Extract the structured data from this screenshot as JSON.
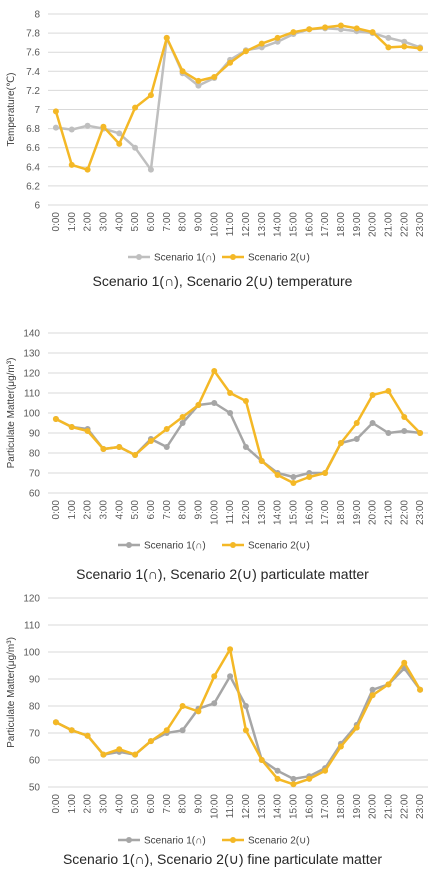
{
  "colors": {
    "series1": "#bfbfbf",
    "series2": "#f4b826",
    "grid": "#d9d9d9",
    "series1_dark": "#a6a6a6"
  },
  "chart_data": [
    {
      "type": "line",
      "title": "Scenario 1(∩), Scenario 2(∪) temperature",
      "xlabel": "",
      "ylabel": "Temperature(℃)",
      "ylim": [
        6,
        8
      ],
      "ystep": 0.2,
      "grid": true,
      "legend": "bottom",
      "categories": [
        "0:00",
        "1:00",
        "2:00",
        "3:00",
        "4:00",
        "5:00",
        "6:00",
        "7:00",
        "8:00",
        "9:00",
        "10:00",
        "11:00",
        "12:00",
        "13:00",
        "14:00",
        "15:00",
        "16:00",
        "17:00",
        "18:00",
        "19:00",
        "20:00",
        "21:00",
        "22:00",
        "23:00"
      ],
      "series": [
        {
          "name": "Scenario 1(∩)",
          "values": [
            6.81,
            6.79,
            6.83,
            6.8,
            6.75,
            6.6,
            6.37,
            7.75,
            7.38,
            7.25,
            7.33,
            7.52,
            7.62,
            7.65,
            7.71,
            7.79,
            7.84,
            7.85,
            7.84,
            7.82,
            7.8,
            7.75,
            7.71,
            7.65
          ]
        },
        {
          "name": "Scenario 2(∪)",
          "values": [
            6.98,
            6.42,
            6.37,
            6.82,
            6.64,
            7.02,
            7.15,
            7.75,
            7.4,
            7.3,
            7.34,
            7.49,
            7.61,
            7.69,
            7.75,
            7.81,
            7.84,
            7.86,
            7.88,
            7.85,
            7.81,
            7.65,
            7.66,
            7.64
          ]
        }
      ]
    },
    {
      "type": "line",
      "title": "Scenario 1(∩), Scenario 2(∪) particulate matter",
      "xlabel": "",
      "ylabel": "Particulate Matter(μg/m³)",
      "ylim": [
        60,
        140
      ],
      "ystep": 10,
      "grid": true,
      "legend": "bottom",
      "categories": [
        "0:00",
        "1:00",
        "2:00",
        "3:00",
        "4:00",
        "5:00",
        "6:00",
        "7:00",
        "8:00",
        "9:00",
        "10:00",
        "11:00",
        "12:00",
        "13:00",
        "14:00",
        "15:00",
        "16:00",
        "17:00",
        "18:00",
        "19:00",
        "20:00",
        "21:00",
        "22:00",
        "23:00"
      ],
      "series": [
        {
          "name": "Scenario 1(∩)",
          "values": [
            97,
            93,
            92,
            82,
            83,
            79,
            87,
            83,
            95,
            104,
            105,
            100,
            83,
            76,
            70,
            68,
            70,
            70,
            85,
            87,
            95,
            90,
            91,
            90
          ]
        },
        {
          "name": "Scenario 2(∪)",
          "values": [
            97,
            93,
            91,
            82,
            83,
            79,
            86,
            92,
            98,
            104,
            121,
            110,
            106,
            76,
            69,
            65,
            68,
            70,
            85,
            95,
            109,
            111,
            98,
            90
          ]
        }
      ]
    },
    {
      "type": "line",
      "title": "Scenario 1(∩), Scenario 2(∪) fine particulate matter",
      "xlabel": "",
      "ylabel": "Particulate Matter(μg/m³)",
      "ylim": [
        50,
        120
      ],
      "ystep": 10,
      "grid": true,
      "legend": "bottom",
      "categories": [
        "0:00",
        "1:00",
        "2:00",
        "3:00",
        "4:00",
        "5:00",
        "6:00",
        "7:00",
        "8:00",
        "9:00",
        "10:00",
        "11:00",
        "12:00",
        "13:00",
        "14:00",
        "15:00",
        "16:00",
        "17:00",
        "18:00",
        "19:00",
        "20:00",
        "21:00",
        "22:00",
        "23:00"
      ],
      "series": [
        {
          "name": "Scenario 1(∩)",
          "values": [
            74,
            71,
            69,
            62,
            63,
            62,
            67,
            70,
            71,
            79,
            81,
            91,
            80,
            60,
            56,
            53,
            54,
            57,
            66,
            73,
            86,
            88,
            94,
            86
          ]
        },
        {
          "name": "Scenario 2(∪)",
          "values": [
            74,
            71,
            69,
            62,
            64,
            62,
            67,
            71,
            80,
            78,
            91,
            101,
            71,
            60,
            53,
            51,
            53,
            56,
            65,
            72,
            84,
            88,
            96,
            86
          ]
        }
      ]
    }
  ]
}
